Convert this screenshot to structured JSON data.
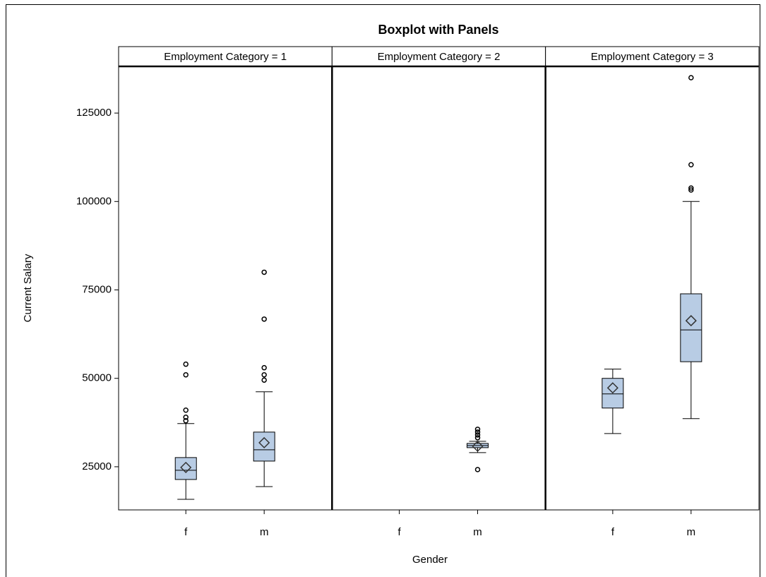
{
  "chart_data": {
    "type": "box",
    "title": "Boxplot with Panels",
    "xlabel": "Gender",
    "ylabel": "Current Salary",
    "ylim": [
      12800,
      138200
    ],
    "yticks": [
      25000,
      50000,
      75000,
      100000,
      125000
    ],
    "box_color": "#b8cce4",
    "panels": [
      {
        "title": "Employment Category = 1",
        "categories": [
          "f",
          "m"
        ],
        "boxes": [
          {
            "min": 15800,
            "q1": 21400,
            "median": 24000,
            "q3": 27600,
            "max": 37200,
            "mean": 24800,
            "outliers": [
              54000,
              51000,
              41000,
              39000,
              38000
            ]
          },
          {
            "min": 19400,
            "q1": 26600,
            "median": 29800,
            "q3": 34800,
            "max": 46200,
            "mean": 31800,
            "outliers": [
              80000,
              66750,
              53000,
              51000,
              49500
            ]
          }
        ]
      },
      {
        "title": "Employment Category = 2",
        "categories": [
          "f",
          "m"
        ],
        "boxes": [
          null,
          {
            "min": 29000,
            "q1": 30400,
            "median": 31000,
            "q3": 31600,
            "max": 32200,
            "mean": 30800,
            "outliers": [
              35600,
              34800,
              34000,
              33200,
              24200
            ]
          }
        ]
      },
      {
        "title": "Employment Category = 3",
        "categories": [
          "f",
          "m"
        ],
        "boxes": [
          {
            "min": 34400,
            "q1": 41600,
            "median": 45600,
            "q3": 50000,
            "max": 52600,
            "mean": 47300,
            "outliers": []
          },
          {
            "min": 38600,
            "q1": 54700,
            "median": 63700,
            "q3": 73900,
            "max": 100000,
            "mean": 66300,
            "outliers": [
              135000,
              110400,
              103800,
              103250
            ]
          }
        ]
      }
    ]
  }
}
